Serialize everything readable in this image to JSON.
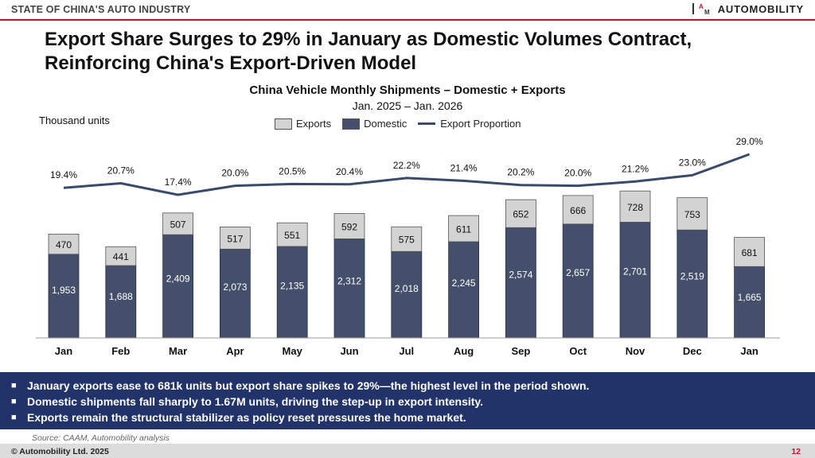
{
  "header": {
    "section_label": "STATE OF CHINA'S AUTO INDUSTRY",
    "brand_name": "AUTOMOBILITY"
  },
  "headline": "Export Share Surges to 29% in January as Domestic Volumes Contract, Reinforcing China's Export-Driven Model",
  "colors": {
    "accent_red": "#c8102e",
    "exports": "#d3d3d3",
    "domestic": "#44506b",
    "proportion_line": "#3a4a6b",
    "bullet_bg": "#22336a"
  },
  "chart_data": {
    "type": "bar",
    "stacked": true,
    "title": "China Vehicle Monthly Shipments – Domestic + Exports",
    "subtitle": "Jan. 2025 – Jan. 2026",
    "ylabel": "Thousand units",
    "categories": [
      "Jan",
      "Feb",
      "Mar",
      "Apr",
      "May",
      "Jun",
      "Jul",
      "Aug",
      "Sep",
      "Oct",
      "Nov",
      "Dec",
      "Jan"
    ],
    "series": [
      {
        "name": "Domestic",
        "values": [
          1953,
          1688,
          2409,
          2073,
          2135,
          2312,
          2018,
          2245,
          2574,
          2657,
          2701,
          2519,
          1665
        ]
      },
      {
        "name": "Exports",
        "values": [
          470,
          441,
          507,
          517,
          551,
          592,
          575,
          611,
          652,
          666,
          728,
          753,
          681
        ]
      }
    ],
    "domestic_labels": [
      "1,953",
      "1,688",
      "2,409",
      "2,073",
      "2,135",
      "2,312",
      "2,018",
      "2,245",
      "2,574",
      "2,657",
      "2,701",
      "2,519",
      "1,665"
    ],
    "line": {
      "name": "Export Proportion",
      "values": [
        19.4,
        20.7,
        17.4,
        20.0,
        20.5,
        20.4,
        22.2,
        21.4,
        20.2,
        20.0,
        21.2,
        23.0,
        29.0
      ],
      "labels": [
        "19.4%",
        "20.7%",
        "17.4%",
        "20.0%",
        "20.5%",
        "20.4%",
        "22.2%",
        "21.4%",
        "20.2%",
        "20.0%",
        "21.2%",
        "23.0%",
        "29.0%"
      ]
    },
    "legend": [
      "Exports",
      "Domestic",
      "Export Proportion"
    ],
    "legend_position": "top-center",
    "grid": false
  },
  "bullets": [
    "January exports ease to 681k units but export share spikes to 29%—the highest level in the period shown.",
    "Domestic shipments fall sharply to 1.67M units, driving the step-up in export intensity.",
    "Exports remain the structural stabilizer as policy reset pressures the home market."
  ],
  "bullet_marker": "■",
  "source": "Source: CAAM, Automobility analysis",
  "footer": {
    "copyright": "© Automobility Ltd. 2025",
    "page_number": "12"
  }
}
